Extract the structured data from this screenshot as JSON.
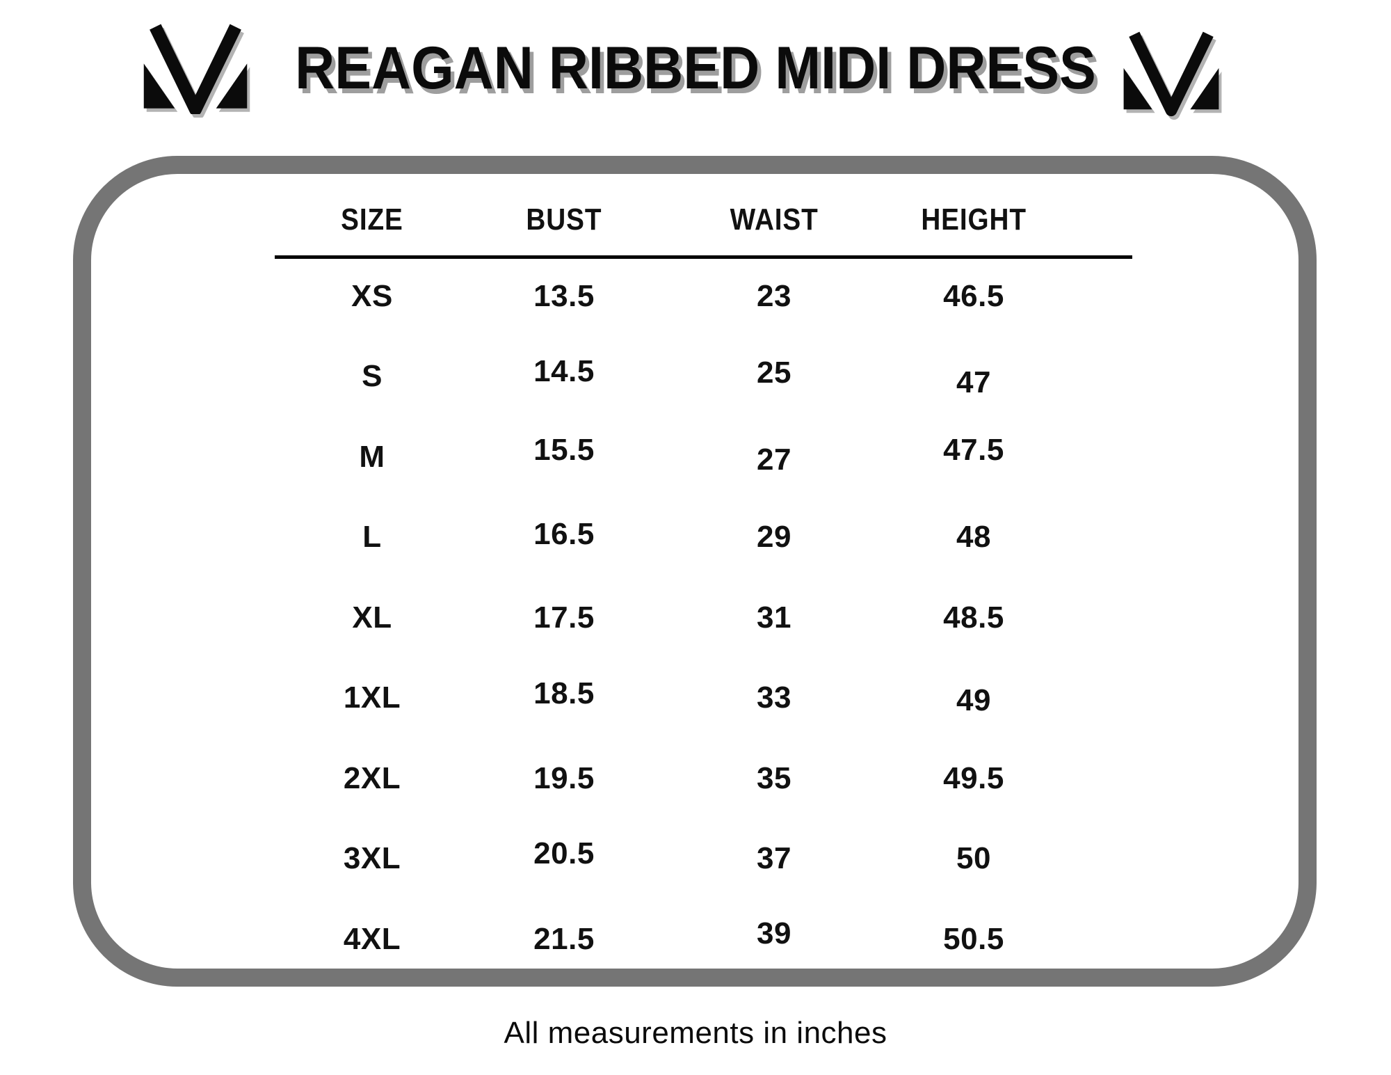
{
  "header": {
    "left_logo_icon": "m-monogram-icon",
    "right_logo_icon": "m-monogram-icon"
  },
  "chart_data": {
    "type": "table",
    "title": "REAGAN RIBBED MIDI DRESS",
    "columns": [
      "SIZE",
      "BUST",
      "WAIST",
      "HEIGHT"
    ],
    "rows": [
      [
        "XS",
        "13.5",
        "23",
        "46.5"
      ],
      [
        "S",
        "14.5",
        "25",
        "47"
      ],
      [
        "M",
        "15.5",
        "27",
        "47.5"
      ],
      [
        "L",
        "16.5",
        "29",
        "48"
      ],
      [
        "XL",
        "17.5",
        "31",
        "48.5"
      ],
      [
        "1XL",
        "18.5",
        "33",
        "49"
      ],
      [
        "2XL",
        "19.5",
        "35",
        "49.5"
      ],
      [
        "3XL",
        "20.5",
        "37",
        "50"
      ],
      [
        "4XL",
        "21.5",
        "39",
        "50.5"
      ]
    ],
    "note": "All measurements in inches",
    "units": "inches",
    "layout": {
      "grid": "off",
      "frame": "rounded-rectangle"
    }
  },
  "colors": {
    "background": "#ffffff",
    "frame_border": "#757575",
    "text": "#111111",
    "title_shadow": "#9e9e9e"
  }
}
